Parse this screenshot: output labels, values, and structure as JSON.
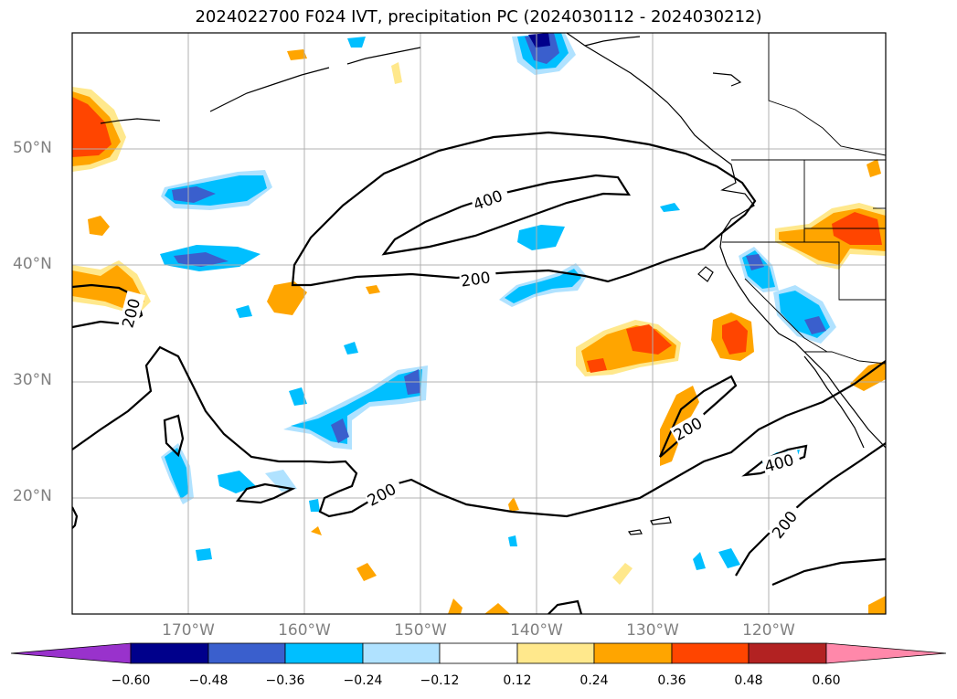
{
  "title": "2024022700 F024 IVT, precipitation PC (2024030112 - 2024030212)",
  "latitude_labels": [
    "50°N",
    "40°N",
    "30°N",
    "20°N"
  ],
  "longitude_labels": [
    "170°W",
    "160°W",
    "150°W",
    "140°W",
    "130°W",
    "120°W"
  ],
  "ivt_contour_labels": [
    "400",
    "200",
    "200",
    "200",
    "200",
    "400",
    "200"
  ],
  "colorbar": {
    "tick_labels": [
      "−0.60",
      "−0.48",
      "−0.36",
      "−0.24",
      "−0.12",
      "0.12",
      "0.24",
      "0.36",
      "0.48",
      "0.60"
    ],
    "colors": [
      "#9932cc",
      "#00008b",
      "#3a5fcd",
      "#00bfff",
      "#b0e2ff",
      "#ffffff",
      "#ffe88c",
      "#ffa500",
      "#ff4500",
      "#b22222",
      "#ff88aa"
    ]
  },
  "colors": {
    "graticule": "#b0b0b0",
    "coastline": "#000000",
    "axis_label": "#808080"
  }
}
